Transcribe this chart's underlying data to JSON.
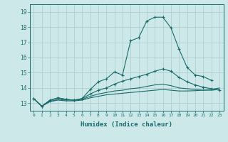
{
  "xlabel": "Humidex (Indice chaleur)",
  "xlim": [
    -0.5,
    23.5
  ],
  "ylim": [
    12.5,
    19.5
  ],
  "yticks": [
    13,
    14,
    15,
    16,
    17,
    18,
    19
  ],
  "xticks": [
    0,
    1,
    2,
    3,
    4,
    5,
    6,
    7,
    8,
    9,
    10,
    11,
    12,
    13,
    14,
    15,
    16,
    17,
    18,
    19,
    20,
    21,
    22,
    23
  ],
  "bg_color": "#cce8e8",
  "grid_color": "#aacccc",
  "line_color": "#1a6b6b",
  "lines": [
    {
      "x": [
        0,
        1,
        2,
        3,
        4,
        5,
        6,
        7,
        8,
        9,
        10,
        11,
        12,
        13,
        14,
        15,
        16,
        17,
        18,
        19,
        20,
        21,
        22
      ],
      "y": [
        13.3,
        12.8,
        13.2,
        13.35,
        13.25,
        13.2,
        13.3,
        13.9,
        14.4,
        14.6,
        15.05,
        14.85,
        17.1,
        17.3,
        18.4,
        18.65,
        18.65,
        17.95,
        16.55,
        15.35,
        14.85,
        14.75,
        14.5
      ],
      "marker": "+"
    },
    {
      "x": [
        0,
        1,
        2,
        3,
        4,
        5,
        6,
        7,
        8,
        9,
        10,
        11,
        12,
        13,
        14,
        15,
        16,
        17,
        18,
        19,
        20,
        21,
        22,
        23
      ],
      "y": [
        13.3,
        12.8,
        13.15,
        13.35,
        13.25,
        13.2,
        13.3,
        13.6,
        13.85,
        14.0,
        14.25,
        14.45,
        14.6,
        14.75,
        14.9,
        15.1,
        15.25,
        15.1,
        14.7,
        14.4,
        14.2,
        14.05,
        13.95,
        13.85
      ],
      "marker": "+"
    },
    {
      "x": [
        0,
        1,
        2,
        3,
        4,
        5,
        6,
        7,
        8,
        9,
        10,
        11,
        12,
        13,
        14,
        15,
        16,
        17,
        18,
        19,
        20,
        21,
        22,
        23
      ],
      "y": [
        13.3,
        12.8,
        13.1,
        13.25,
        13.2,
        13.2,
        13.25,
        13.45,
        13.6,
        13.7,
        13.8,
        13.85,
        13.95,
        14.0,
        14.1,
        14.2,
        14.25,
        14.15,
        14.0,
        13.95,
        13.9,
        13.85,
        13.85,
        13.9
      ],
      "marker": null
    },
    {
      "x": [
        0,
        1,
        2,
        3,
        4,
        5,
        6,
        7,
        8,
        9,
        10,
        11,
        12,
        13,
        14,
        15,
        16,
        17,
        18,
        19,
        20,
        21,
        22,
        23
      ],
      "y": [
        13.3,
        12.8,
        13.1,
        13.2,
        13.15,
        13.15,
        13.2,
        13.35,
        13.45,
        13.55,
        13.6,
        13.65,
        13.7,
        13.75,
        13.8,
        13.85,
        13.9,
        13.85,
        13.8,
        13.8,
        13.82,
        13.85,
        13.9,
        14.0
      ],
      "marker": null
    }
  ]
}
